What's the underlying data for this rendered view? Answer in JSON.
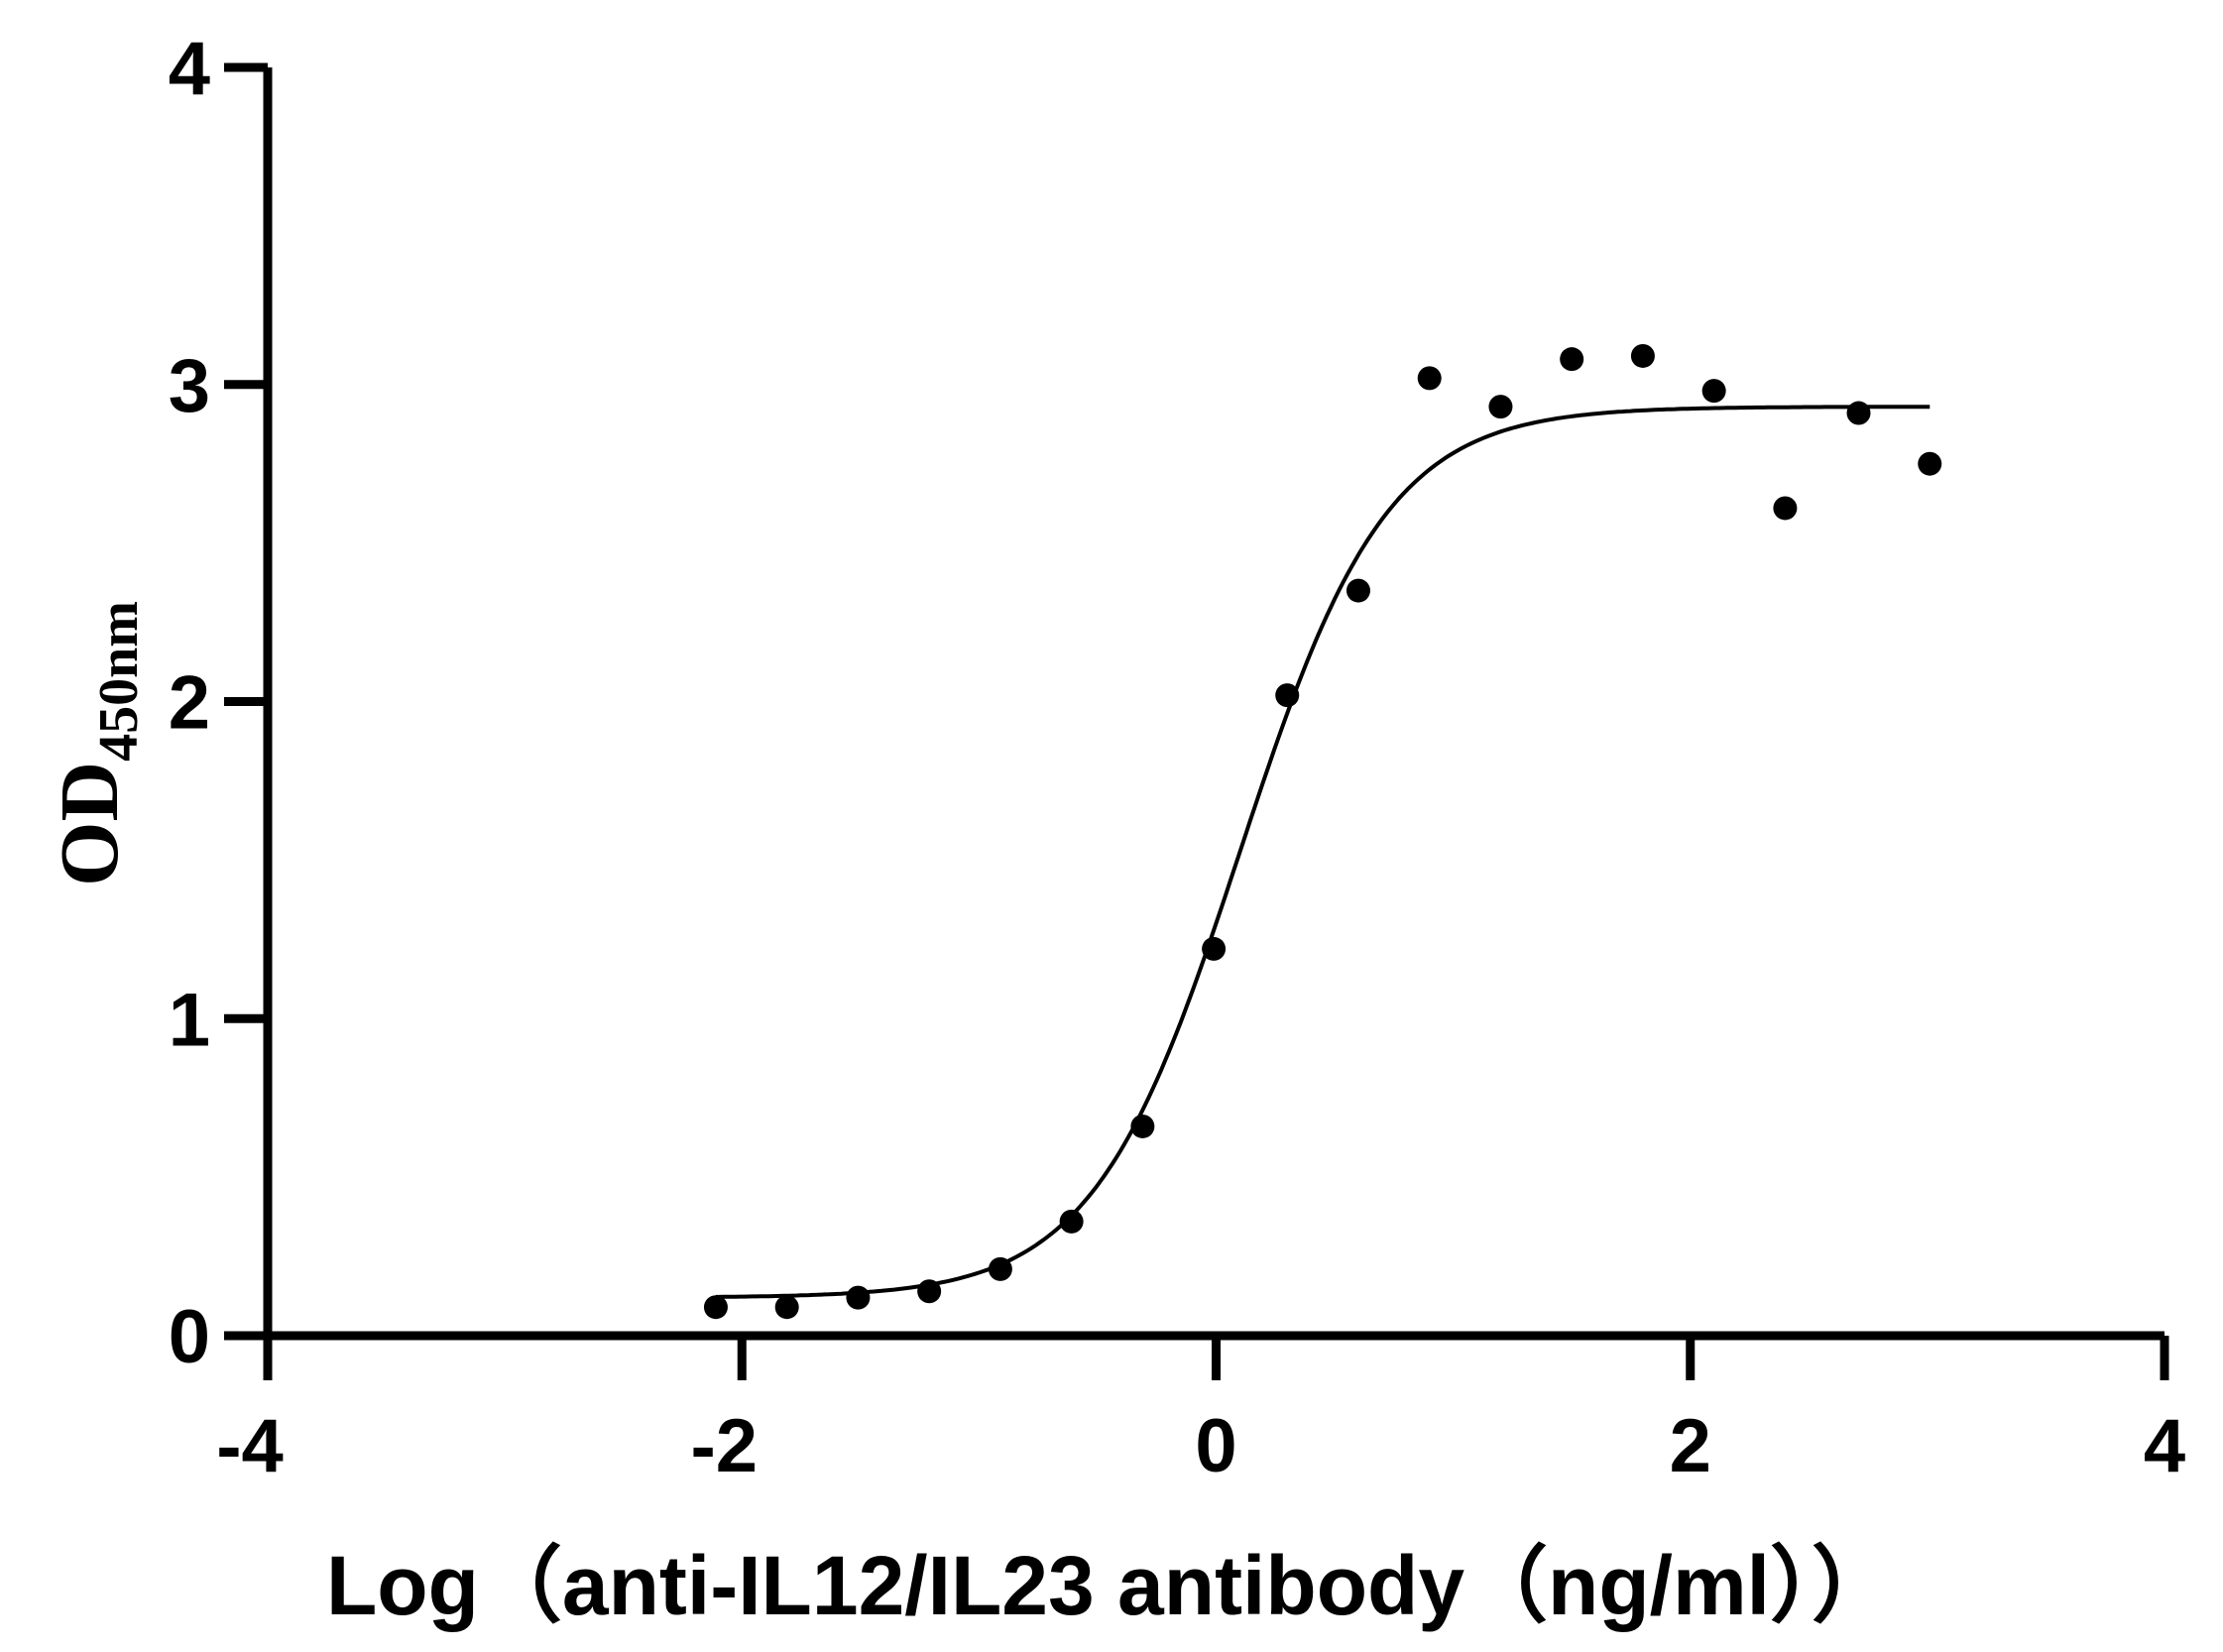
{
  "chart_data": {
    "type": "scatter",
    "title": "",
    "xlabel": "Log（anti-IL12/IL23 antibody（ng/ml））",
    "ylabel": "OD",
    "ylabel_subscript": "450nm",
    "xlim": [
      -4,
      4
    ],
    "ylim": [
      0,
      4
    ],
    "x_ticks": [
      "-4",
      "-2",
      "0",
      "2",
      "4"
    ],
    "y_ticks": [
      "0",
      "1",
      "2",
      "3",
      "4"
    ],
    "grid": false,
    "series": [
      {
        "points": [
          {
            "x": -2.11,
            "y": 0.09
          },
          {
            "x": -1.81,
            "y": 0.09
          },
          {
            "x": -1.51,
            "y": 0.12
          },
          {
            "x": -1.21,
            "y": 0.14
          },
          {
            "x": -0.91,
            "y": 0.21
          },
          {
            "x": -0.61,
            "y": 0.36
          },
          {
            "x": -0.31,
            "y": 0.66
          },
          {
            "x": -0.01,
            "y": 1.22
          },
          {
            "x": 0.3,
            "y": 2.02
          },
          {
            "x": 0.6,
            "y": 2.35
          },
          {
            "x": 0.9,
            "y": 3.02
          },
          {
            "x": 1.2,
            "y": 2.93
          },
          {
            "x": 1.5,
            "y": 3.08
          },
          {
            "x": 1.8,
            "y": 3.09
          },
          {
            "x": 2.1,
            "y": 2.98
          },
          {
            "x": 2.4,
            "y": 2.61
          },
          {
            "x": 2.71,
            "y": 2.91
          },
          {
            "x": 3.01,
            "y": 2.75
          }
        ]
      }
    ],
    "fit_curve": {
      "model": "4PL",
      "bottom": 0.12,
      "top": 2.93,
      "logEC50": 0.1,
      "hill_slope": 1.4,
      "x_range": [
        -2.11,
        3.01
      ]
    },
    "colors": {
      "axis": "#000000",
      "points": "#000000",
      "curve": "#000000",
      "background": "#ffffff"
    }
  }
}
